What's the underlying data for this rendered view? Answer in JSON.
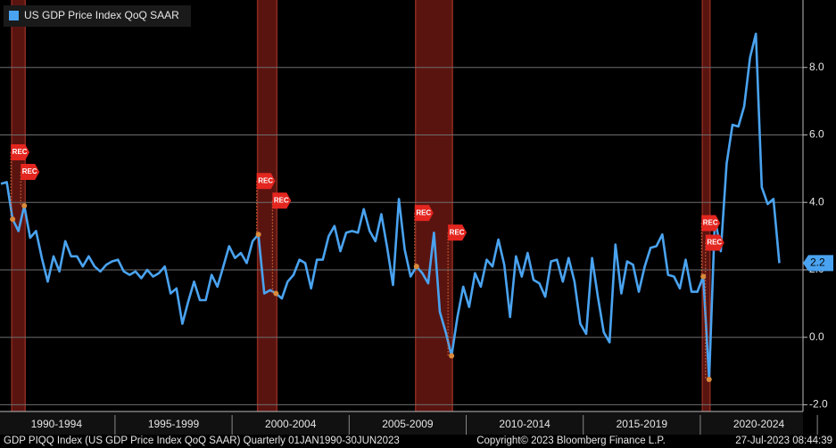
{
  "chart_data": {
    "type": "line",
    "legend": "US GDP Price Index QoQ SAAR",
    "footer_left": "GDP PIQQ Index (US GDP Price Index QoQ SAAR)  Quarterly 01JAN1990-30JUN2023",
    "footer_center": "Copyright© 2023 Bloomberg Finance L.P.",
    "footer_right": "27-Jul-2023 08:44:39",
    "annotation": "REC",
    "x_labels": [
      "1990-1994",
      "1995-1999",
      "2000-2004",
      "2005-2009",
      "2010-2014",
      "2015-2019",
      "2020-2024"
    ],
    "series": [
      {
        "name": "US GDP Price Index QoQ SAAR",
        "color": "#4aa3f0",
        "values": [
          4.55,
          4.6,
          3.5,
          3.15,
          3.9,
          2.95,
          3.15,
          2.35,
          1.65,
          2.4,
          1.95,
          2.85,
          2.4,
          2.4,
          2.1,
          2.4,
          2.1,
          1.95,
          2.15,
          2.25,
          2.3,
          1.95,
          1.85,
          1.95,
          1.75,
          2.0,
          1.8,
          1.9,
          2.1,
          1.3,
          1.45,
          0.4,
          1.05,
          1.65,
          1.1,
          1.1,
          1.85,
          1.5,
          2.1,
          2.7,
          2.35,
          2.5,
          2.2,
          2.85,
          3.05,
          1.3,
          1.4,
          1.3,
          1.15,
          1.65,
          1.85,
          2.3,
          2.2,
          1.45,
          2.3,
          2.3,
          3.0,
          3.3,
          2.55,
          3.1,
          3.15,
          3.1,
          3.8,
          3.15,
          2.85,
          3.65,
          2.65,
          1.55,
          4.1,
          2.6,
          1.8,
          2.1,
          1.9,
          1.6,
          3.1,
          0.75,
          0.15,
          -0.55,
          0.6,
          1.5,
          0.9,
          1.9,
          1.5,
          2.3,
          2.1,
          2.9,
          2.15,
          0.6,
          2.4,
          1.8,
          2.5,
          1.7,
          1.6,
          1.2,
          2.25,
          2.3,
          1.65,
          2.35,
          1.65,
          0.4,
          0.1,
          2.35,
          1.2,
          0.15,
          -0.15,
          2.75,
          1.3,
          2.25,
          2.15,
          1.35,
          2.1,
          2.65,
          2.7,
          3.05,
          1.85,
          1.8,
          1.45,
          2.3,
          1.35,
          1.35,
          1.8,
          -1.25,
          3.55,
          2.55,
          5.15,
          6.3,
          6.25,
          6.85,
          8.3,
          9.0,
          4.45,
          3.95,
          4.1,
          2.2
        ]
      }
    ],
    "recessions": [
      [
        2,
        4
      ],
      [
        44,
        47
      ],
      [
        71,
        77
      ],
      [
        120,
        121
      ]
    ],
    "ylim": [
      -2.2,
      10
    ],
    "yticks": [
      {
        "value": 8,
        "label": "8.0"
      },
      {
        "value": 6,
        "label": "6.0"
      },
      {
        "value": 4,
        "label": "4.0"
      },
      {
        "value": 2,
        "label": "2.0"
      },
      {
        "value": 0,
        "label": "0.0"
      },
      {
        "value": -2,
        "label": "-2.0"
      }
    ],
    "grid": true
  }
}
